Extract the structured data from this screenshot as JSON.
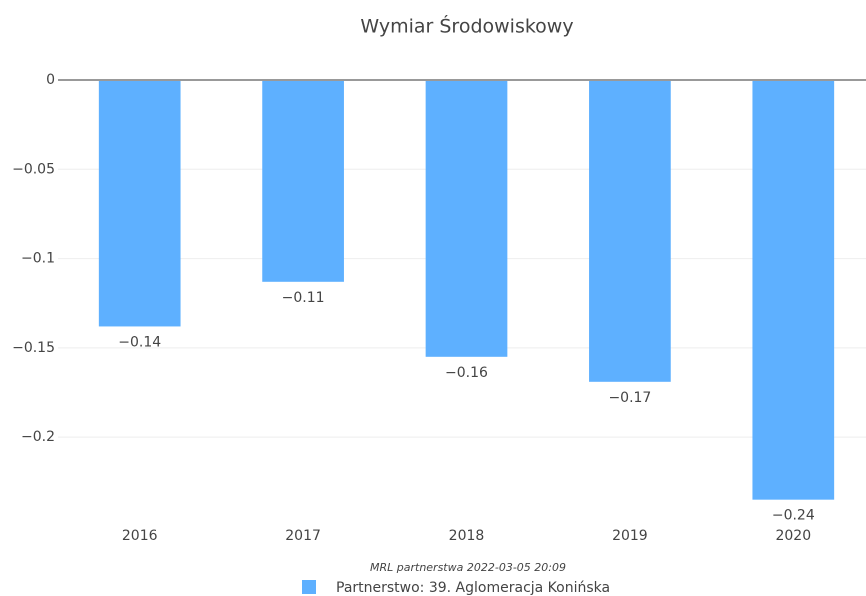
{
  "chart_data": {
    "type": "bar",
    "title": "Wymiar Środowiskowy",
    "categories": [
      "2016",
      "2017",
      "2018",
      "2019",
      "2020"
    ],
    "series": [
      {
        "name": "Partnerstwo: 39. Aglomeracja Konińska",
        "color": "#5eb0ff",
        "values": [
          -0.138,
          -0.113,
          -0.155,
          -0.169,
          -0.235
        ],
        "value_labels": [
          "−0.14",
          "−0.11",
          "−0.16",
          "−0.17",
          "−0.24"
        ]
      }
    ],
    "ylim": [
      -0.24,
      0
    ],
    "yticks": [
      0,
      {
        "value": -0.05,
        "label": "−0.05"
      },
      {
        "value": -0.1,
        "label": "−0.1"
      },
      {
        "value": -0.15,
        "label": "−0.15"
      },
      {
        "value": -0.2,
        "label": "−0.2"
      }
    ],
    "grid": true,
    "annotations": [
      "MRL partnerstwa 2022-03-05 20:09"
    ]
  }
}
